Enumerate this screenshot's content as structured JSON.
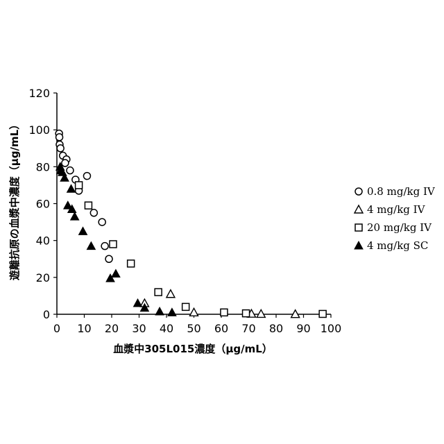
{
  "chart_data": {
    "type": "scatter",
    "title": "",
    "xlabel": "血漿中305L015濃度（μg/mL）",
    "ylabel": "遊離抗原の血漿中濃度（μg/mL）",
    "xlim": [
      0,
      100
    ],
    "ylim": [
      0,
      120
    ],
    "x_ticks": [
      "0",
      "10",
      "20",
      "30",
      "40",
      "50",
      "60",
      "70",
      "80",
      "90",
      "100"
    ],
    "y_ticks": [
      "0",
      "20",
      "40",
      "60",
      "80",
      "100",
      "120"
    ],
    "grid": false,
    "legend_position": "right",
    "series": [
      {
        "name": "0.8 mg/kg IV",
        "marker": "circle-open",
        "points": [
          [
            0.8,
            98
          ],
          [
            0.9,
            96
          ],
          [
            1.0,
            92
          ],
          [
            1.3,
            90
          ],
          [
            2.2,
            86
          ],
          [
            3.5,
            84
          ],
          [
            3.0,
            82
          ],
          [
            4.8,
            78
          ],
          [
            6.8,
            73
          ],
          [
            11.0,
            75
          ],
          [
            8.0,
            67
          ],
          [
            13.5,
            55
          ],
          [
            16.5,
            50
          ],
          [
            17.5,
            37
          ],
          [
            19.0,
            30
          ]
        ]
      },
      {
        "name": "4 mg/kg IV",
        "marker": "triangle-open",
        "points": [
          [
            32,
            6
          ],
          [
            41.5,
            11
          ],
          [
            50,
            1
          ],
          [
            71,
            0.3
          ],
          [
            74.5,
            0.2
          ],
          [
            87,
            0.1
          ]
        ]
      },
      {
        "name": "20 mg/kg IV",
        "marker": "square-open",
        "points": [
          [
            8.0,
            70
          ],
          [
            11.5,
            59
          ],
          [
            20.5,
            38
          ],
          [
            27,
            27.5
          ],
          [
            37,
            12
          ],
          [
            47,
            4
          ],
          [
            61,
            1
          ],
          [
            69,
            0.5
          ],
          [
            97,
            0.2
          ]
        ]
      },
      {
        "name": "4 mg/kg SC",
        "marker": "triangle-filled",
        "points": [
          [
            1.2,
            80
          ],
          [
            1.4,
            78
          ],
          [
            2.0,
            77
          ],
          [
            2.8,
            74
          ],
          [
            4.0,
            59
          ],
          [
            5.5,
            57
          ],
          [
            5.2,
            68
          ],
          [
            6.5,
            53
          ],
          [
            9.5,
            45
          ],
          [
            12.5,
            37
          ],
          [
            19.5,
            19.5
          ],
          [
            21.5,
            22
          ],
          [
            29.5,
            6
          ],
          [
            32,
            3.5
          ],
          [
            37.5,
            1.5
          ],
          [
            42,
            1
          ]
        ]
      }
    ]
  }
}
